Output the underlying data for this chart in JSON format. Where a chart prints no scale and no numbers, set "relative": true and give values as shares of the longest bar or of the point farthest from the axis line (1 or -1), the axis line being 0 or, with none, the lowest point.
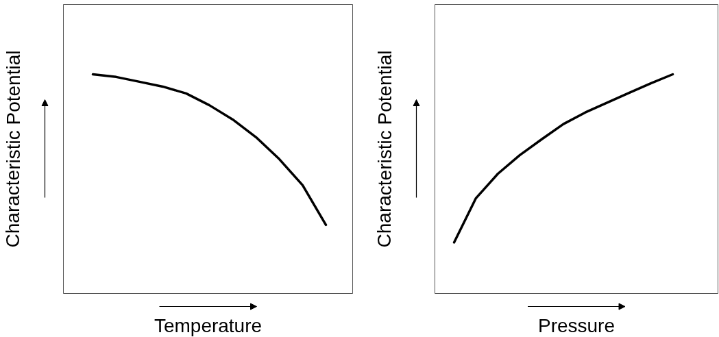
{
  "chart_data": [
    {
      "type": "line",
      "relative": true,
      "xlabel": "Temperature",
      "ylabel": "Characteristic Potential",
      "categories": [
        null,
        null,
        null,
        null,
        null,
        null,
        null,
        null,
        null,
        null,
        null
      ],
      "series": [
        {
          "color": "#000000",
          "values": [
            1,
            0.988,
            0.966,
            0.944,
            0.913,
            0.859,
            0.794,
            0.713,
            0.613,
            0.494,
            0.313
          ]
        }
      ]
    },
    {
      "type": "line",
      "relative": true,
      "xlabel": "Pressure",
      "ylabel": "Characteristic Potential",
      "categories": [
        null,
        null,
        null,
        null,
        null,
        null,
        null,
        null,
        null,
        null,
        null
      ],
      "series": [
        {
          "color": "#000000",
          "values": [
            0.233,
            0.435,
            0.546,
            0.631,
            0.703,
            0.773,
            0.826,
            0.871,
            0.915,
            0.959,
            1
          ]
        }
      ]
    }
  ]
}
